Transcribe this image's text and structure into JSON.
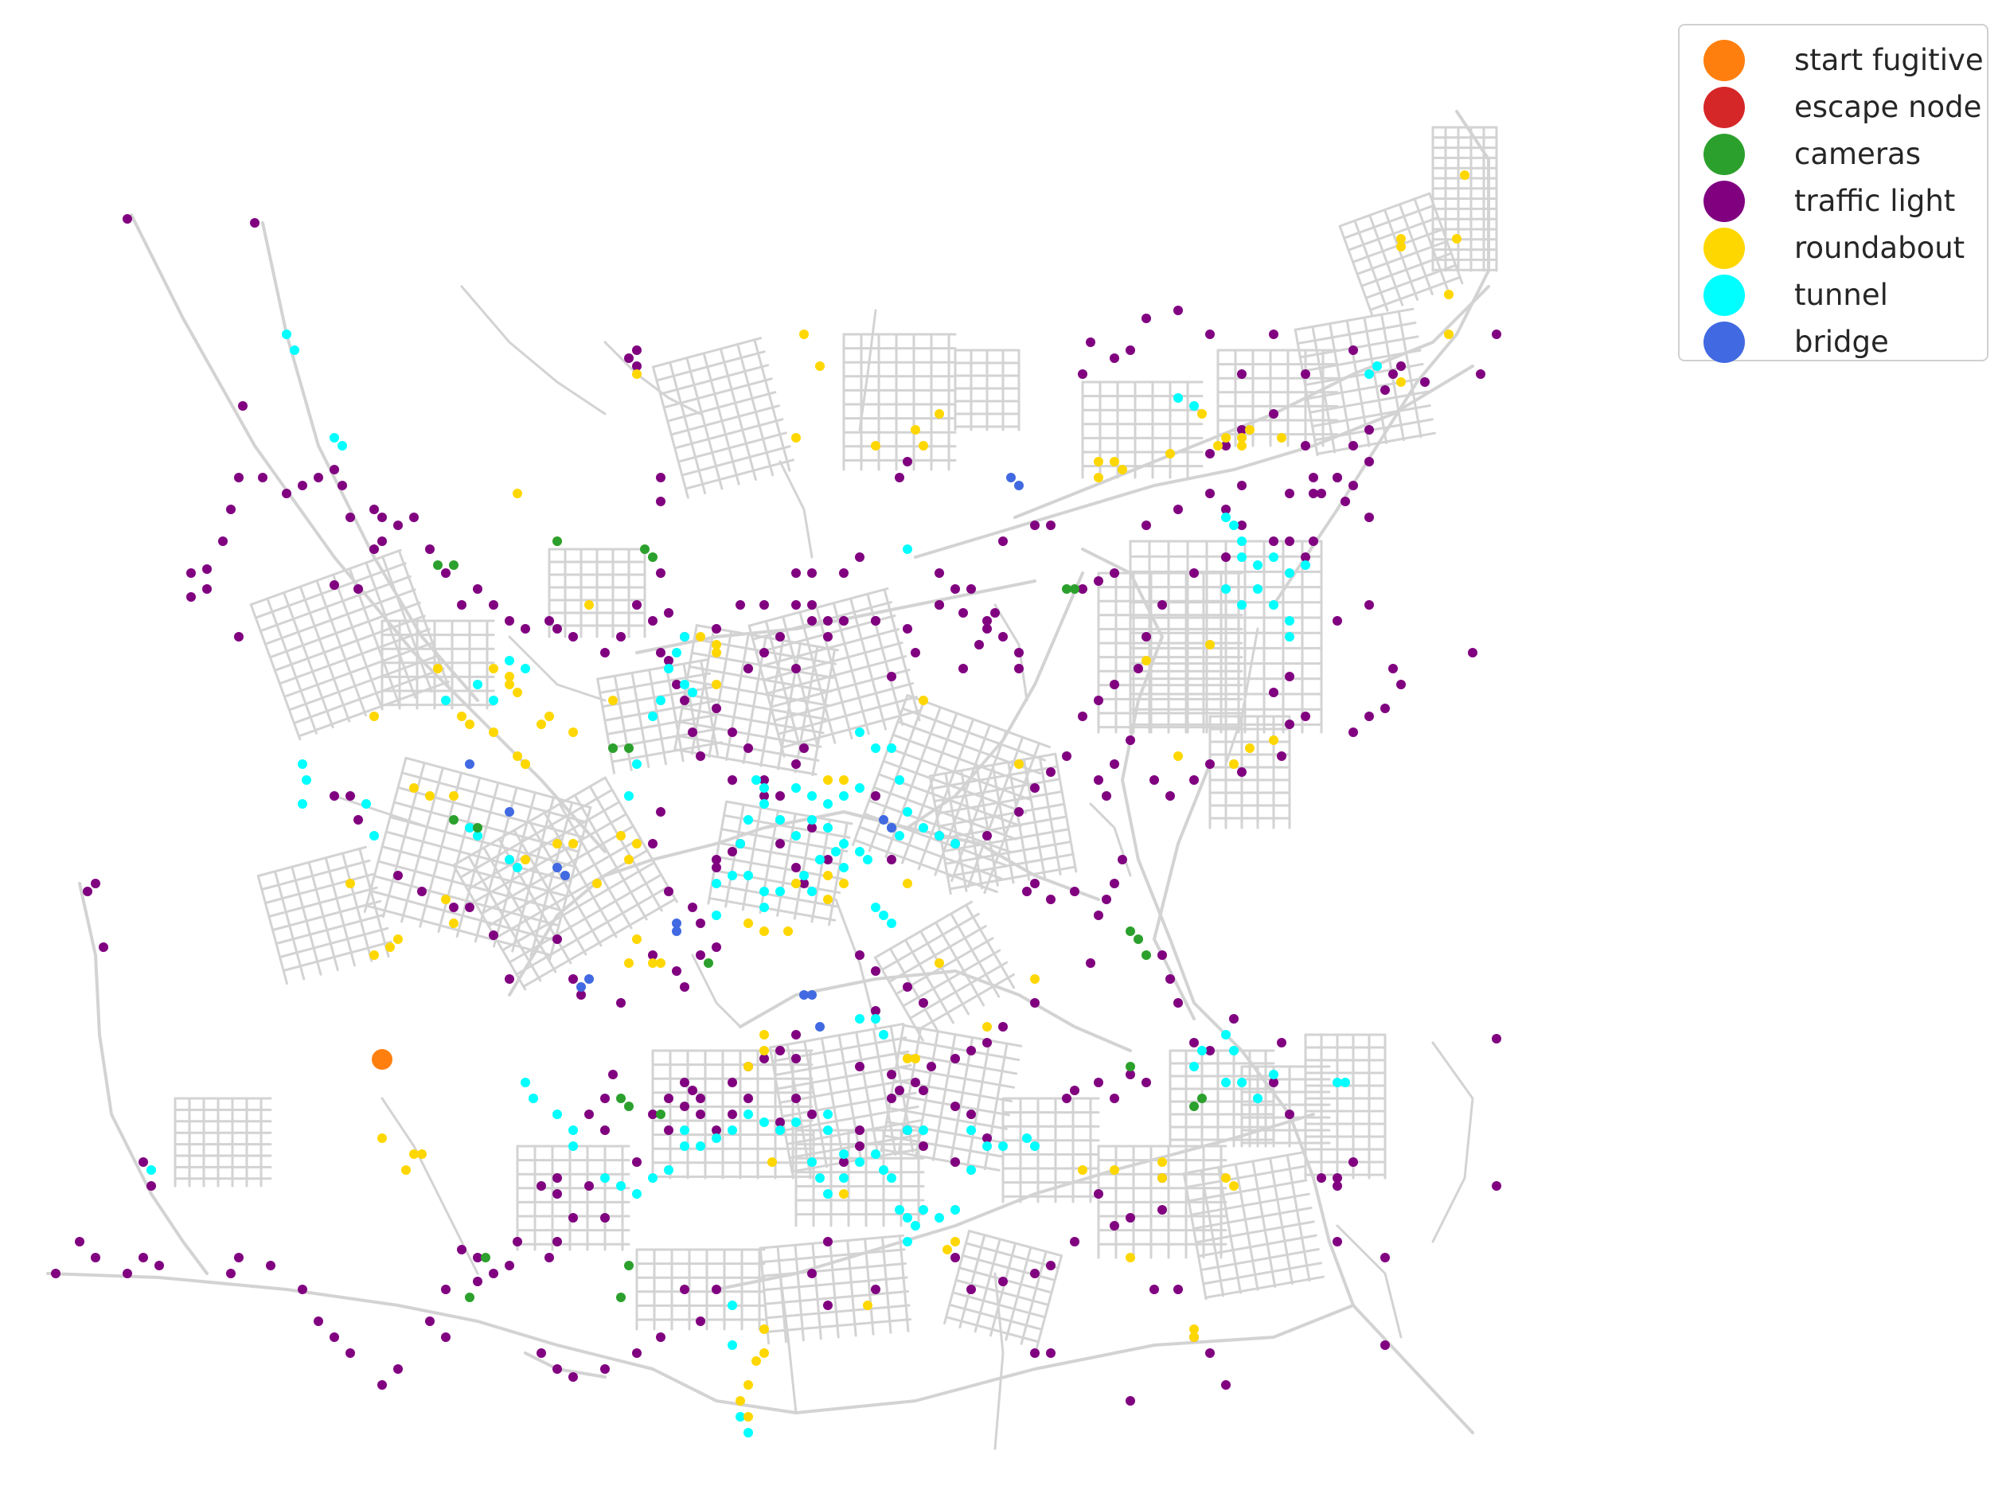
{
  "legend": {
    "items": [
      {
        "label": "start fugitive",
        "color": "#ff7f0e"
      },
      {
        "label": "escape node",
        "color": "#d62728"
      },
      {
        "label": "cameras",
        "color": "#2ca02c"
      },
      {
        "label": "traffic light",
        "color": "#800080"
      },
      {
        "label": "roundabout",
        "color": "#ffd700"
      },
      {
        "label": "tunnel",
        "color": "#00ffff"
      },
      {
        "label": "bridge",
        "color": "#4169e1"
      }
    ]
  },
  "map": {
    "road_color": "#d3d3d3",
    "background": "#ffffff"
  }
}
